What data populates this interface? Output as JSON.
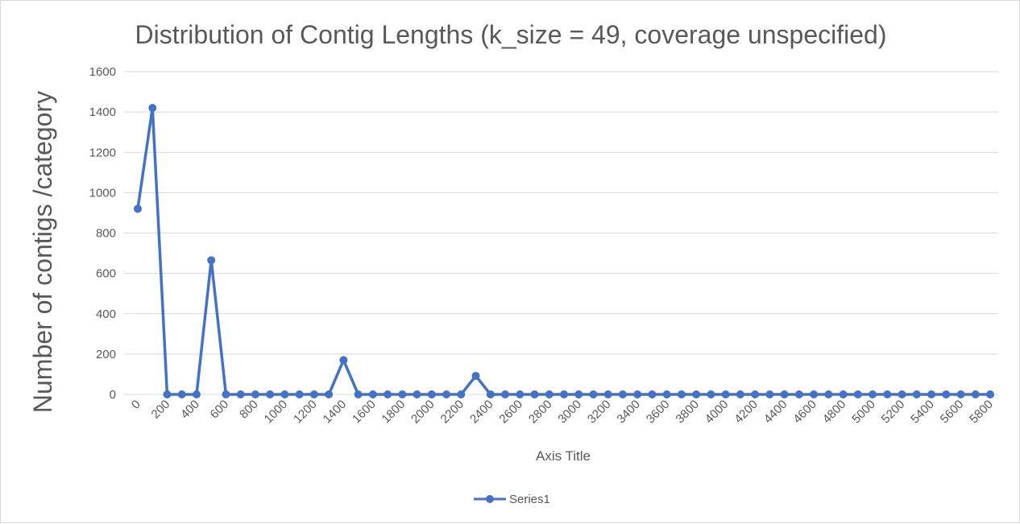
{
  "chart_data": {
    "type": "line",
    "title": "Distribution of Contig Lengths (k_size = 49, coverage unspecified)",
    "xlabel": "Axis Title",
    "ylabel": "Number of contigs /category",
    "x": [
      0,
      100,
      200,
      300,
      400,
      500,
      600,
      700,
      800,
      900,
      1000,
      1100,
      1200,
      1300,
      1400,
      1500,
      1600,
      1700,
      1800,
      1900,
      2000,
      2100,
      2200,
      2300,
      2400,
      2500,
      2600,
      2700,
      2800,
      2900,
      3000,
      3100,
      3200,
      3300,
      3400,
      3500,
      3600,
      3700,
      3800,
      3900,
      4000,
      4100,
      4200,
      4300,
      4400,
      4500,
      4600,
      4700,
      4800,
      4900,
      5000,
      5100,
      5200,
      5300,
      5400,
      5500,
      5600,
      5700,
      5800
    ],
    "x_tick_labels": [
      "0",
      "200",
      "400",
      "600",
      "800",
      "1000",
      "1200",
      "1400",
      "1600",
      "1800",
      "2000",
      "2200",
      "2400",
      "2600",
      "2800",
      "3000",
      "3200",
      "3400",
      "3600",
      "3800",
      "4000",
      "4200",
      "4400",
      "4600",
      "4800",
      "5000",
      "5200",
      "5400",
      "5600",
      "5800"
    ],
    "series": [
      {
        "name": "Series1",
        "color": "#4472c4",
        "values": [
          920,
          1420,
          0,
          0,
          0,
          665,
          0,
          0,
          0,
          0,
          0,
          0,
          0,
          0,
          170,
          0,
          0,
          0,
          0,
          0,
          0,
          0,
          0,
          92,
          0,
          0,
          0,
          0,
          0,
          0,
          0,
          0,
          0,
          0,
          0,
          0,
          0,
          0,
          0,
          0,
          0,
          0,
          0,
          0,
          0,
          0,
          0,
          0,
          0,
          0,
          0,
          0,
          0,
          0,
          0,
          0,
          0,
          0,
          0
        ]
      }
    ],
    "ylim": [
      0,
      1600
    ],
    "y_ticks": [
      0,
      200,
      400,
      600,
      800,
      1000,
      1200,
      1400,
      1600
    ],
    "grid": true,
    "legend_position": "bottom"
  }
}
